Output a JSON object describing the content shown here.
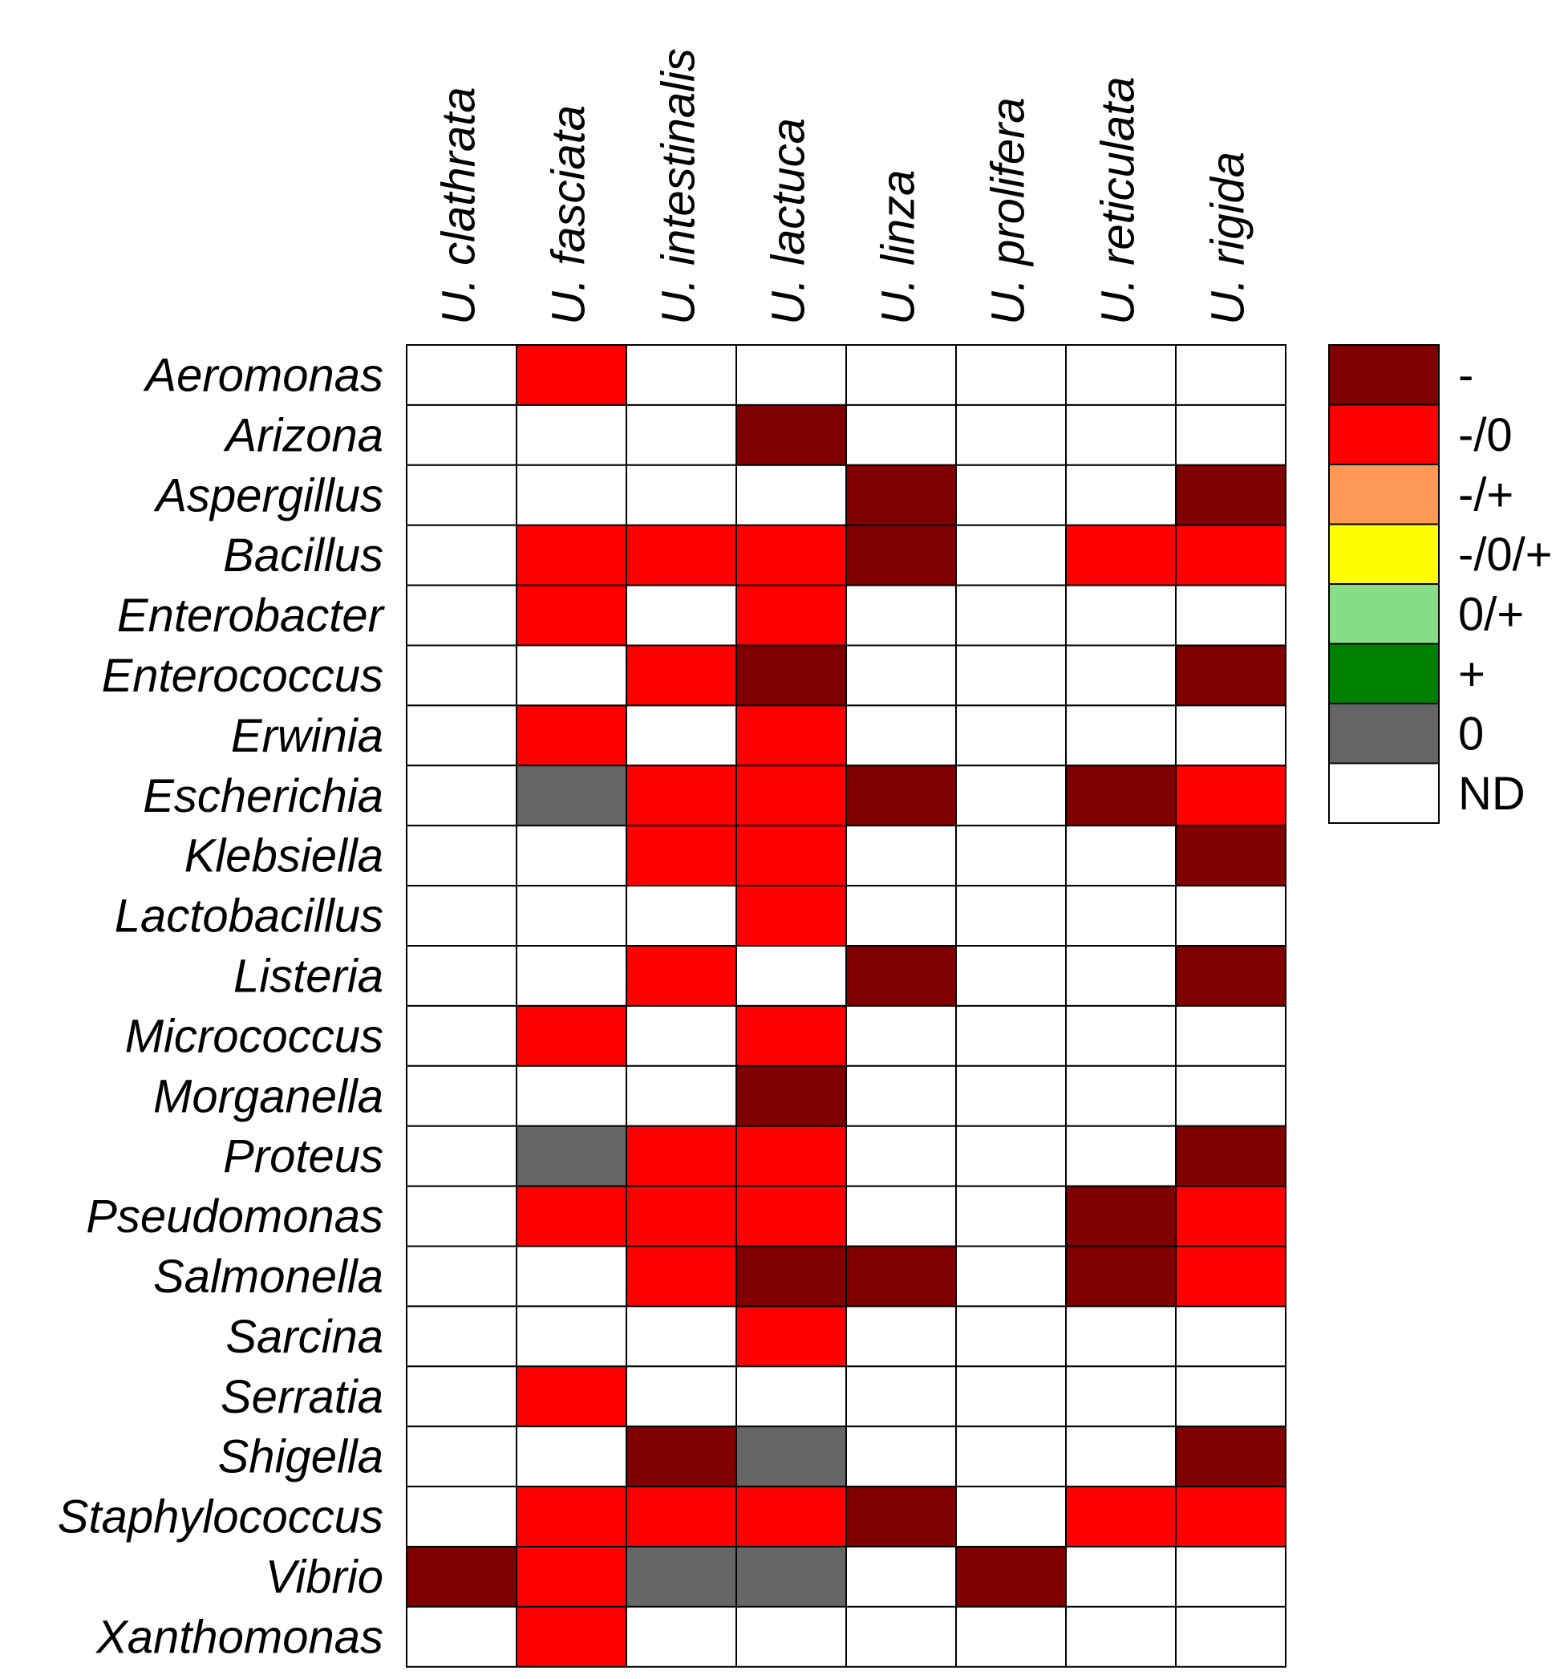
{
  "chart_data": {
    "type": "heatmap",
    "title": "",
    "xlabel": "",
    "ylabel": "",
    "columns": [
      "U. clathrata",
      "U. fasciata",
      "U. intestinalis",
      "U. lactuca",
      "U. linza",
      "U. prolifera",
      "U. reticulata",
      "U. rigida"
    ],
    "rows": [
      "Aeromonas",
      "Arizona",
      "Aspergillus",
      "Bacillus",
      "Enterobacter",
      "Enterococcus",
      "Erwinia",
      "Escherichia",
      "Klebsiella",
      "Lactobacillus",
      "Listeria",
      "Micrococcus",
      "Morganella",
      "Proteus",
      "Pseudomonas",
      "Salmonella",
      "Sarcina",
      "Serratia",
      "Shigella",
      "Staphylococcus",
      "Vibrio",
      "Xanthomonas"
    ],
    "values": [
      [
        "ND",
        "-/0",
        "ND",
        "ND",
        "ND",
        "ND",
        "ND",
        "ND"
      ],
      [
        "ND",
        "ND",
        "ND",
        "-",
        "ND",
        "ND",
        "ND",
        "ND"
      ],
      [
        "ND",
        "ND",
        "ND",
        "ND",
        "-",
        "ND",
        "ND",
        "-"
      ],
      [
        "ND",
        "-/0",
        "-/0",
        "-/0",
        "-",
        "ND",
        "-/0",
        "-/0"
      ],
      [
        "ND",
        "-/0",
        "ND",
        "-/0",
        "ND",
        "ND",
        "ND",
        "ND"
      ],
      [
        "ND",
        "ND",
        "-/0",
        "-",
        "ND",
        "ND",
        "ND",
        "-"
      ],
      [
        "ND",
        "-/0",
        "ND",
        "-/0",
        "ND",
        "ND",
        "ND",
        "ND"
      ],
      [
        "ND",
        "0",
        "-/0",
        "-/0",
        "-",
        "ND",
        "-",
        "-/0"
      ],
      [
        "ND",
        "ND",
        "-/0",
        "-/0",
        "ND",
        "ND",
        "ND",
        "-"
      ],
      [
        "ND",
        "ND",
        "ND",
        "-/0",
        "ND",
        "ND",
        "ND",
        "ND"
      ],
      [
        "ND",
        "ND",
        "-/0",
        "ND",
        "-",
        "ND",
        "ND",
        "-"
      ],
      [
        "ND",
        "-/0",
        "ND",
        "-/0",
        "ND",
        "ND",
        "ND",
        "ND"
      ],
      [
        "ND",
        "ND",
        "ND",
        "-",
        "ND",
        "ND",
        "ND",
        "ND"
      ],
      [
        "ND",
        "0",
        "-/0",
        "-/0",
        "ND",
        "ND",
        "ND",
        "-"
      ],
      [
        "ND",
        "-/0",
        "-/0",
        "-/0",
        "ND",
        "ND",
        "-",
        "-/0"
      ],
      [
        "ND",
        "ND",
        "-/0",
        "-",
        "-",
        "ND",
        "-",
        "-/0"
      ],
      [
        "ND",
        "ND",
        "ND",
        "-/0",
        "ND",
        "ND",
        "ND",
        "ND"
      ],
      [
        "ND",
        "-/0",
        "ND",
        "ND",
        "ND",
        "ND",
        "ND",
        "ND"
      ],
      [
        "ND",
        "ND",
        "-",
        "0",
        "ND",
        "ND",
        "ND",
        "-"
      ],
      [
        "ND",
        "-/0",
        "-/0",
        "-/0",
        "-",
        "ND",
        "-/0",
        "-/0"
      ],
      [
        "-",
        "-/0",
        "0",
        "0",
        "ND",
        "-",
        "ND",
        "ND"
      ],
      [
        "ND",
        "-/0",
        "ND",
        "ND",
        "ND",
        "ND",
        "ND",
        "ND"
      ]
    ],
    "legend": [
      {
        "label": "-",
        "color": "#800000"
      },
      {
        "label": "-/0",
        "color": "#FF0000"
      },
      {
        "label": "-/+",
        "color": "#FF9955"
      },
      {
        "label": "-/0/+",
        "color": "#FFFF00"
      },
      {
        "label": "0/+",
        "color": "#88DD88"
      },
      {
        "label": "+",
        "color": "#008000"
      },
      {
        "label": "0",
        "color": "#666666"
      },
      {
        "label": "ND",
        "color": "#FFFFFF"
      }
    ],
    "legend_position": "right",
    "grid": true
  }
}
